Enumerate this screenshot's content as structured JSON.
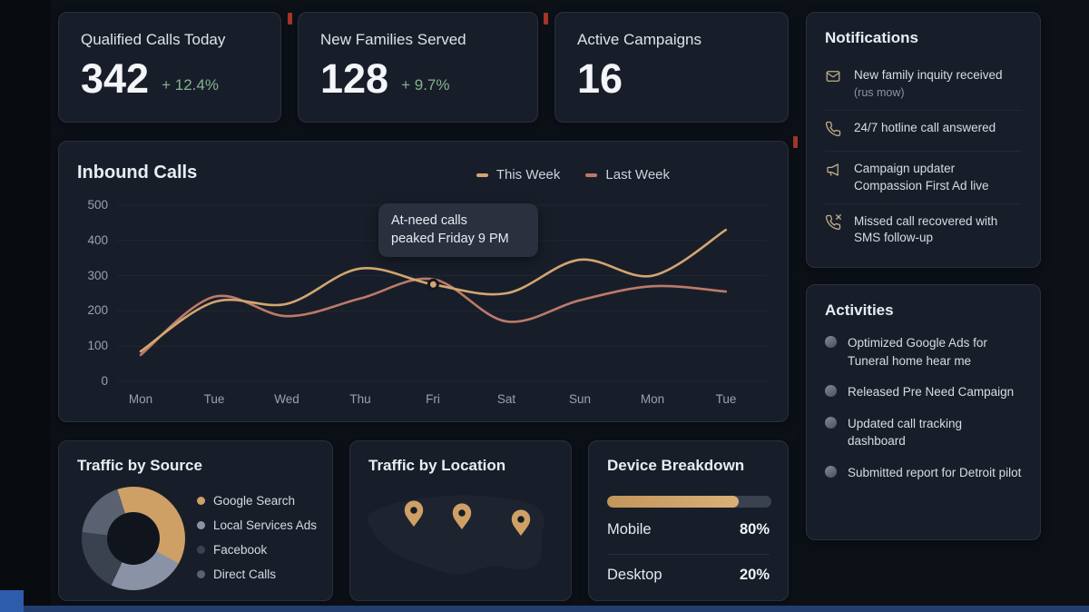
{
  "theme": {
    "accent_gold": "#cfa066",
    "line_gold": "#d3a671",
    "line_rose": "#bc7a6a",
    "positive_green": "#86b38e",
    "card_bg": "#181e29",
    "page_bg": "#0c1017"
  },
  "stats": [
    {
      "title": "Qualified Calls Today",
      "value": "342",
      "delta": "+ 12.4%"
    },
    {
      "title": "New Families Served",
      "value": "128",
      "delta": "+ 9.7%"
    },
    {
      "title": "Active Campaigns",
      "value": "16",
      "delta": ""
    }
  ],
  "notifications": {
    "title": "Notifications",
    "items": [
      {
        "icon": "mail-icon",
        "text": "New family inquity received",
        "subtext": "(rus mow)"
      },
      {
        "icon": "phone-icon",
        "text": "24/7 hotline call answered"
      },
      {
        "icon": "megaphone-icon",
        "text": "Campaign updater Compassion First Ad live"
      },
      {
        "icon": "missed-call-icon",
        "text": "Missed call recovered with SMS follow-up"
      }
    ]
  },
  "activities": {
    "title": "Activities",
    "items": [
      {
        "text": "Optimized Google Ads for Tuneral home hear me"
      },
      {
        "text": "Released Pre Need Campaign"
      },
      {
        "text": "Updated call tracking dashboard"
      },
      {
        "text": "Submitted report for Detroit pilot"
      }
    ]
  },
  "location": {
    "title": "Traffic by Location",
    "pin_count": 3
  },
  "chart_data": [
    {
      "id": "inbound-calls",
      "type": "line",
      "title": "Inbound Calls",
      "categories": [
        "Mon",
        "Tue",
        "Wed",
        "Thu",
        "Fri",
        "Sat",
        "Sun",
        "Mon",
        "Tue"
      ],
      "series": [
        {
          "name": "This Week",
          "color": "#d3a671",
          "values": [
            85,
            225,
            220,
            320,
            275,
            250,
            345,
            300,
            430
          ]
        },
        {
          "name": "Last Week",
          "color": "#bc7a6a",
          "values": [
            75,
            240,
            185,
            235,
            290,
            170,
            230,
            270,
            255
          ]
        }
      ],
      "ylim": [
        0,
        500
      ],
      "yticks": [
        0,
        100,
        200,
        300,
        400,
        500
      ],
      "grid": "horizontal-faint",
      "legend_position": "top-right",
      "annotation": {
        "line1": "At-need calls",
        "line2": "peaked Friday 9 PM",
        "series_index": 0,
        "point_index": 4
      }
    },
    {
      "id": "traffic-by-source",
      "type": "pie",
      "title": "Traffic by Source",
      "donut": true,
      "slices": [
        {
          "label": "Google Search",
          "value": 38,
          "color": "#cfa066"
        },
        {
          "label": "Local Services Ads",
          "value": 24,
          "color": "#8a93a5"
        },
        {
          "label": "Facebook",
          "value": 20,
          "color": "#3a4250"
        },
        {
          "label": "Direct Calls",
          "value": 18,
          "color": "#5a6272"
        }
      ]
    },
    {
      "id": "device-breakdown",
      "type": "bar",
      "title": "Device Breakdown",
      "percent": 80,
      "bar_color": "#cfa066",
      "rows": [
        {
          "label": "Mobile",
          "value": "80%"
        },
        {
          "label": "Desktop",
          "value": "20%"
        }
      ]
    }
  ]
}
